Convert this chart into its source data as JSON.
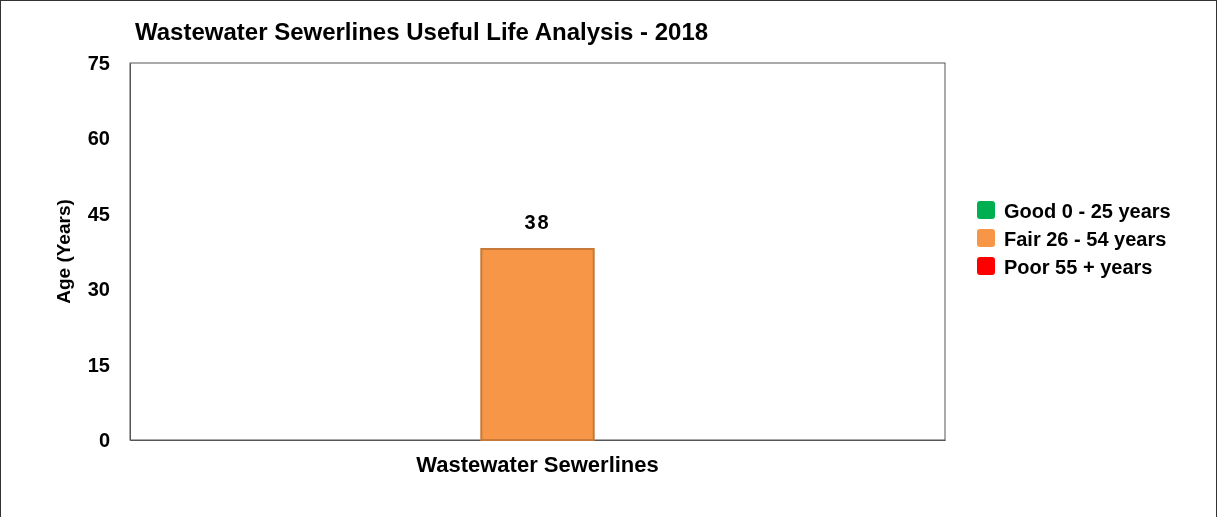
{
  "chart_data": {
    "type": "bar",
    "title": "Wastewater Sewerlines Useful Life Analysis - 2018",
    "ylabel": "Age (Years)",
    "categories": [
      "Wastewater Sewerlines"
    ],
    "series": [
      {
        "name": "Good 0 - 25 years",
        "color": "#00b050",
        "values": [
          null
        ]
      },
      {
        "name": "Fair 26 - 54 years",
        "color": "#f79646",
        "values": [
          38
        ]
      },
      {
        "name": "Poor 55 + years",
        "color": "#ff0000",
        "values": [
          null
        ]
      }
    ],
    "stacked": true,
    "ylim": [
      0,
      75
    ],
    "yticks": [
      0,
      15,
      30,
      45,
      60,
      75
    ],
    "grid": false,
    "legend": "right",
    "data_labels": true
  }
}
